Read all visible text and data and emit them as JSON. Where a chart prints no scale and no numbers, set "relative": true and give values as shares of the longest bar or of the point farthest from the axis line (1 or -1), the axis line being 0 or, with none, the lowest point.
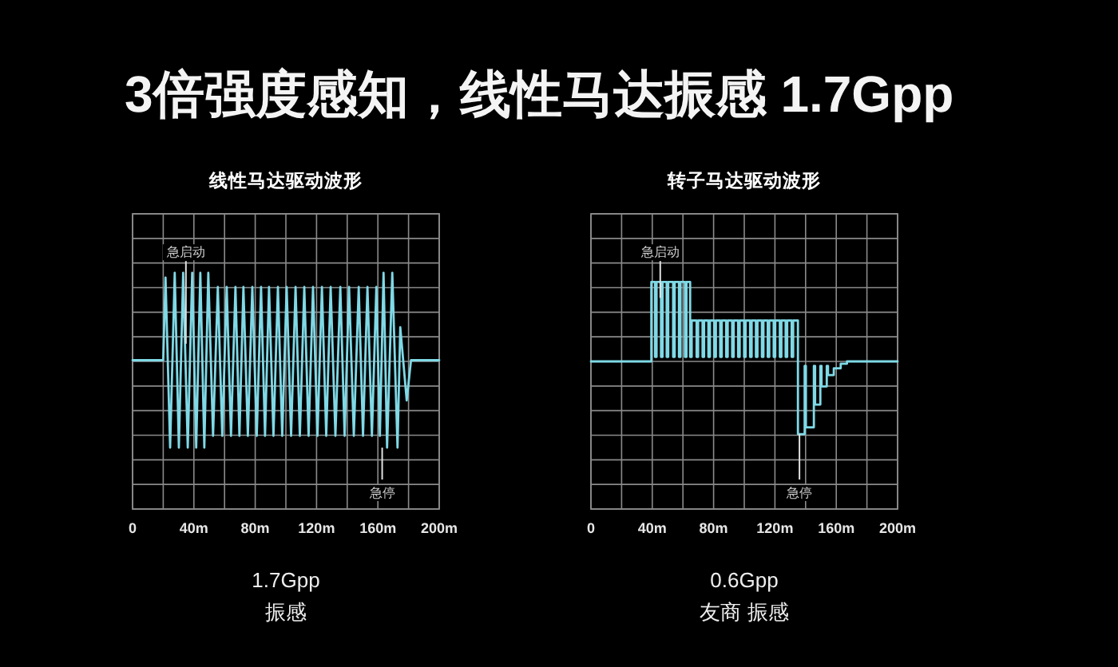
{
  "chart_data": [
    {
      "type": "line",
      "title": "3倍强度感知，线性马达振感 1.7Gpp",
      "subtitle": "线性马达驱动波形",
      "relative": true,
      "color": "#7fd9e6",
      "x": [
        0,
        20,
        21.5,
        24.5,
        27.5,
        30.2,
        33,
        36,
        38.9,
        41.5,
        44.2,
        46.8,
        49.4,
        52.5,
        55.6,
        58.5,
        61.4,
        64.2,
        67.1,
        69.7,
        72.3,
        75.2,
        78.1,
        81,
        83.8,
        86.4,
        89,
        91.9,
        94.8,
        97.6,
        100.5,
        103.4,
        106.3,
        109.1,
        112,
        114.8,
        117.7,
        120.6,
        123.5,
        126.3,
        129.2,
        132.3,
        135.5,
        138.3,
        141.2,
        144.3,
        147.5,
        150.3,
        153.2,
        156.1,
        159,
        161.3,
        163.7,
        166,
        169.4,
        172.8,
        174.6,
        178.8,
        181.6,
        200
      ],
      "values": [
        0.63,
        0.63,
        0.98,
        0.26,
        1,
        0.26,
        1,
        0.26,
        1,
        0.26,
        1,
        0.26,
        1,
        0.31,
        0.94,
        0.31,
        0.94,
        0.31,
        0.94,
        0.31,
        0.94,
        0.31,
        0.94,
        0.31,
        0.94,
        0.31,
        0.94,
        0.31,
        0.94,
        0.31,
        0.94,
        0.31,
        0.94,
        0.31,
        0.94,
        0.31,
        0.94,
        0.31,
        0.94,
        0.31,
        0.94,
        0.31,
        0.94,
        0.31,
        0.94,
        0.31,
        0.94,
        0.31,
        0.94,
        0.31,
        0.94,
        0.31,
        1,
        0.26,
        1,
        0.26,
        0.77,
        0.46,
        0.63,
        0.63
      ],
      "xlim": [
        0,
        200
      ],
      "xticks": [
        0,
        {
          "value": 20,
          "label": null
        },
        {
          "value": 40,
          "label": "40m"
        },
        {
          "value": 60,
          "label": null
        },
        {
          "value": 80,
          "label": "80m"
        },
        {
          "value": 100,
          "label": null
        },
        {
          "value": 120,
          "label": "120m"
        },
        {
          "value": 140,
          "label": null
        },
        {
          "value": 160,
          "label": "160m"
        },
        {
          "value": 180,
          "label": null
        },
        {
          "value": 200,
          "label": "200m"
        }
      ],
      "grid": true,
      "annotations": [
        {
          "text": "急启动",
          "x": 34.8,
          "y": 0.7
        },
        {
          "text": "急停",
          "x": 162.8,
          "y": 0.26
        },
        "1.7Gpp",
        "振感"
      ]
    },
    {
      "type": "line",
      "subtitle": "转子马达驱动波形",
      "relative": true,
      "color": "#7fd9e6",
      "x": [
        0,
        39.4,
        39.4,
        41.8,
        41.8,
        42.8,
        42.8,
        45.7,
        45.7,
        46.7,
        46.7,
        49.4,
        49.4,
        50.4,
        50.4,
        53.6,
        53.6,
        54.6,
        54.6,
        57.4,
        57.4,
        58.4,
        58.4,
        61.3,
        61.3,
        62.3,
        62.3,
        64.7,
        64.7,
        65.7,
        65.7,
        68.9,
        68.9,
        69.9,
        69.9,
        72.8,
        72.8,
        73.8,
        73.8,
        76.6,
        76.6,
        77.6,
        77.6,
        80.5,
        80.5,
        81.5,
        81.5,
        84.3,
        84.3,
        85.3,
        85.3,
        88.2,
        88.2,
        89.2,
        89.2,
        92.1,
        92.1,
        93.1,
        93.1,
        96,
        96,
        97,
        97,
        99.9,
        99.9,
        100.9,
        100.9,
        103.8,
        103.8,
        104.8,
        104.8,
        107.6,
        107.6,
        108.6,
        108.6,
        111.5,
        111.5,
        112.5,
        112.5,
        115.3,
        115.3,
        116.3,
        116.3,
        119.2,
        119.2,
        120.2,
        120.2,
        123.2,
        123.2,
        124.2,
        124.2,
        127,
        127,
        128,
        128,
        130.9,
        130.9,
        131.9,
        131.9,
        135,
        135,
        139.4,
        139.4,
        140.2,
        140.2,
        145.4,
        145.4,
        146.2,
        146.2,
        149.6,
        149.6,
        150.4,
        150.4,
        153.8,
        153.8,
        154.6,
        154.6,
        158.4,
        158.4,
        162.9,
        162.9,
        167,
        167,
        200
      ],
      "values": [
        0.65,
        0.65,
        1,
        1,
        0.67,
        0.67,
        1,
        1,
        0.67,
        0.67,
        1,
        1,
        0.67,
        0.67,
        1,
        1,
        0.67,
        0.67,
        1,
        1,
        0.67,
        0.67,
        1,
        1,
        0.67,
        0.67,
        1,
        1,
        0.67,
        0.67,
        0.83,
        0.83,
        0.67,
        0.67,
        0.83,
        0.83,
        0.67,
        0.67,
        0.83,
        0.83,
        0.67,
        0.67,
        0.83,
        0.83,
        0.67,
        0.67,
        0.83,
        0.83,
        0.67,
        0.67,
        0.83,
        0.83,
        0.67,
        0.67,
        0.83,
        0.83,
        0.67,
        0.67,
        0.83,
        0.83,
        0.67,
        0.67,
        0.83,
        0.83,
        0.67,
        0.67,
        0.83,
        0.83,
        0.67,
        0.67,
        0.83,
        0.83,
        0.67,
        0.67,
        0.83,
        0.83,
        0.67,
        0.67,
        0.83,
        0.83,
        0.67,
        0.67,
        0.83,
        0.83,
        0.67,
        0.67,
        0.83,
        0.83,
        0.67,
        0.67,
        0.83,
        0.83,
        0.67,
        0.67,
        0.83,
        0.83,
        0.67,
        0.67,
        0.83,
        0.83,
        0.33,
        0.33,
        0.63,
        0.63,
        0.36,
        0.36,
        0.63,
        0.63,
        0.46,
        0.46,
        0.63,
        0.63,
        0.54,
        0.54,
        0.63,
        0.63,
        0.59,
        0.59,
        0.62,
        0.62,
        0.64,
        0.64,
        0.65,
        0.65
      ],
      "xlim": [
        0,
        200
      ],
      "xticks": [
        0,
        {
          "value": 20,
          "label": null
        },
        {
          "value": 40,
          "label": "40m"
        },
        {
          "value": 60,
          "label": null
        },
        {
          "value": 80,
          "label": "80m"
        },
        {
          "value": 100,
          "label": null
        },
        {
          "value": 120,
          "label": "120m"
        },
        {
          "value": 140,
          "label": null
        },
        {
          "value": 160,
          "label": "160m"
        },
        {
          "value": 180,
          "label": null
        },
        {
          "value": 200,
          "label": "200m"
        }
      ],
      "grid": true,
      "annotations": [
        {
          "text": "急启动",
          "x": 45.2,
          "y": 0.93
        },
        {
          "text": "急停",
          "x": 136,
          "y": 0.33
        },
        "0.6Gpp",
        "友商 振感"
      ]
    }
  ]
}
